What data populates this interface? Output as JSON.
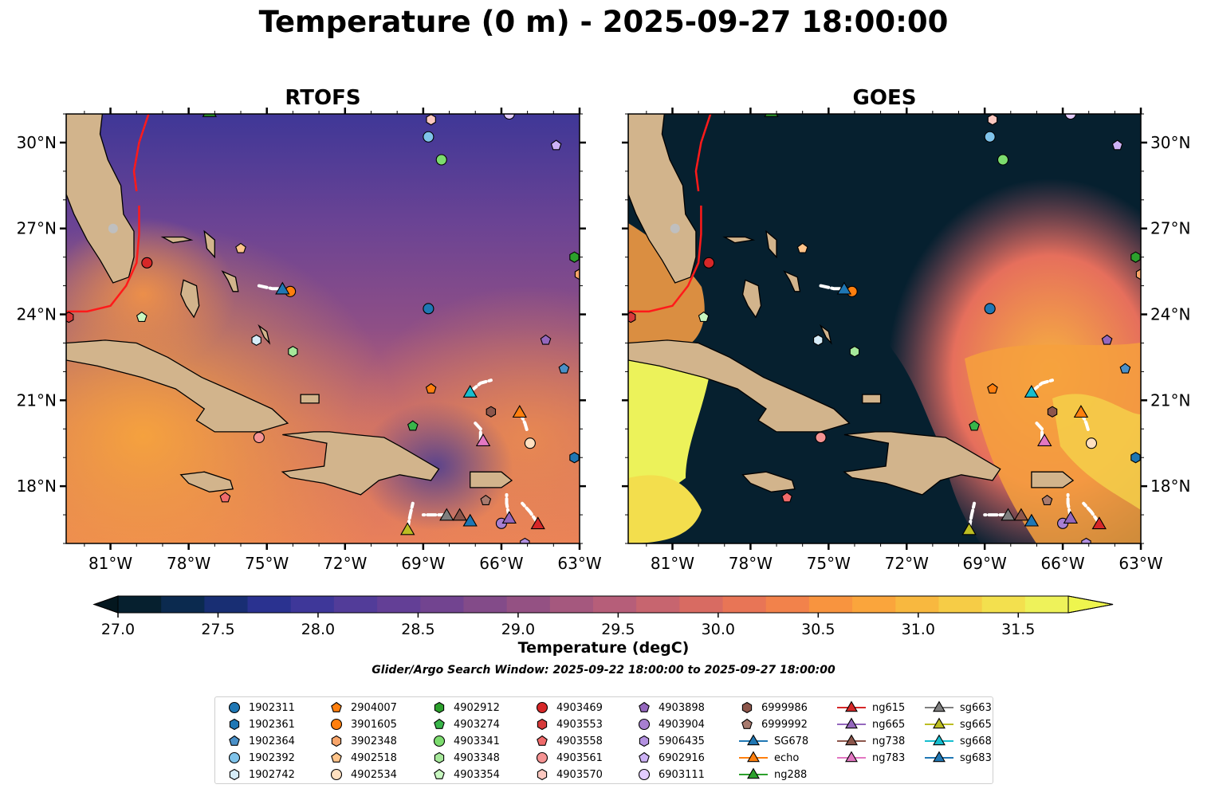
{
  "title": "Temperature (0 m) - 2025-09-27 18:00:00",
  "panels": [
    {
      "id": "rtofs",
      "title": "RTOFS"
    },
    {
      "id": "goes",
      "title": "GOES"
    }
  ],
  "colorbar": {
    "label": "Temperature (degC)",
    "ticks": [
      "27.0",
      "27.5",
      "28.0",
      "28.5",
      "29.0",
      "29.5",
      "30.0",
      "30.5",
      "31.0",
      "31.5"
    ],
    "colors": [
      "#06202f",
      "#0b2a4f",
      "#182e73",
      "#2a3290",
      "#3e3799",
      "#523c99",
      "#633f96",
      "#724490",
      "#834b89",
      "#945183",
      "#a5587e",
      "#b65e79",
      "#c7656f",
      "#d86b62",
      "#e87556",
      "#f2824b",
      "#f8943f",
      "#faa53c",
      "#f8b83f",
      "#f6cc46",
      "#f3e04e",
      "#eef25a"
    ],
    "min": 27.0,
    "max": 31.75,
    "extend": "both"
  },
  "search_window": "Glider/Argo Search Window: 2025-09-22 18:00:00 to 2025-09-27 18:00:00",
  "axes": {
    "x_ticks": [
      "81°W",
      "78°W",
      "75°W",
      "72°W",
      "69°W",
      "66°W",
      "63°W"
    ],
    "y_ticks": [
      "30°N",
      "27°N",
      "24°N",
      "21°N",
      "18°N"
    ]
  },
  "chart_data": {
    "type": "map",
    "lon_range": [
      -82.7,
      -63.0
    ],
    "lat_range": [
      16.0,
      31.0
    ],
    "lon_ticks": [
      -81,
      -78,
      -75,
      -72,
      -69,
      -66,
      -63
    ],
    "lat_ticks": [
      30,
      27,
      24,
      21,
      18
    ],
    "markers": [
      {
        "id": "1902311",
        "shape": "circle",
        "color": "#1f77b4",
        "lon": -68.8,
        "lat": 24.2
      },
      {
        "id": "1902361",
        "shape": "hexagon",
        "color": "#1f77b4",
        "lon": -63.2,
        "lat": 19.0
      },
      {
        "id": "1902364",
        "shape": "pentagon",
        "color": "#4a90c8",
        "lon": -63.6,
        "lat": 22.1
      },
      {
        "id": "1902392",
        "shape": "circle",
        "color": "#7fc3ea",
        "lon": -68.8,
        "lat": 30.2
      },
      {
        "id": "1902742",
        "shape": "hexagon",
        "color": "#d6ecf8",
        "lon": -75.4,
        "lat": 23.1
      },
      {
        "id": "2904007",
        "shape": "pentagon",
        "color": "#ff7f0e",
        "lon": -68.7,
        "lat": 21.4
      },
      {
        "id": "3901605",
        "shape": "circle",
        "color": "#ff7f0e",
        "lon": -74.1,
        "lat": 24.8
      },
      {
        "id": "3902348",
        "shape": "hexagon",
        "color": "#f9a56a",
        "lon": -63.0,
        "lat": 25.4
      },
      {
        "id": "4902518",
        "shape": "pentagon",
        "color": "#ffc48a",
        "lon": -76.0,
        "lat": 26.3
      },
      {
        "id": "4902534",
        "shape": "circle",
        "color": "#ffe0c0",
        "lon": -64.9,
        "lat": 19.5
      },
      {
        "id": "4902912",
        "shape": "hexagon",
        "color": "#2ca02c",
        "lon": -63.2,
        "lat": 26.0
      },
      {
        "id": "4903274",
        "shape": "pentagon",
        "color": "#39b54a",
        "lon": -69.4,
        "lat": 20.1
      },
      {
        "id": "4903341",
        "shape": "circle",
        "color": "#7cdc6e",
        "lon": -68.3,
        "lat": 29.4
      },
      {
        "id": "4903348",
        "shape": "hexagon",
        "color": "#a6e89a",
        "lon": -74.0,
        "lat": 22.7
      },
      {
        "id": "4903354",
        "shape": "pentagon",
        "color": "#c8f7c0",
        "lon": -79.8,
        "lat": 23.9
      },
      {
        "id": "4903469",
        "shape": "circle",
        "color": "#d62728",
        "lon": -79.6,
        "lat": 25.8
      },
      {
        "id": "4903553",
        "shape": "hexagon",
        "color": "#d63a3a",
        "lon": -82.6,
        "lat": 23.9
      },
      {
        "id": "4903558",
        "shape": "pentagon",
        "color": "#f06b6b",
        "lon": -76.6,
        "lat": 17.6
      },
      {
        "id": "4903561",
        "shape": "circle",
        "color": "#f59393",
        "lon": -75.3,
        "lat": 19.7
      },
      {
        "id": "4903570",
        "shape": "hexagon",
        "color": "#fbc8c0",
        "lon": -68.7,
        "lat": 30.8
      },
      {
        "id": "4903898",
        "shape": "pentagon",
        "color": "#9467bd",
        "lon": -64.3,
        "lat": 23.1
      },
      {
        "id": "4903904",
        "shape": "circle",
        "color": "#a77fd1",
        "lon": -66.0,
        "lat": 16.7
      },
      {
        "id": "5906435",
        "shape": "hexagon",
        "color": "#b391e0",
        "lon": -65.1,
        "lat": 16.0
      },
      {
        "id": "6902916",
        "shape": "pentagon",
        "color": "#cdb2f5",
        "lon": -63.9,
        "lat": 29.9
      },
      {
        "id": "6903111",
        "shape": "circle",
        "color": "#e2ccff",
        "lon": -65.7,
        "lat": 31.0
      },
      {
        "id": "6999986",
        "shape": "hexagon",
        "color": "#8c564b",
        "lon": -66.4,
        "lat": 20.6
      },
      {
        "id": "6999992",
        "shape": "pentagon",
        "color": "#a87a6e",
        "lon": -66.6,
        "lat": 17.5
      },
      {
        "id": "SG678",
        "shape": "triangle",
        "color": "#1f77b4",
        "lon": -74.4,
        "lat": 24.9
      },
      {
        "id": "echo",
        "shape": "triangle",
        "color": "#ff7f0e",
        "lon": -65.3,
        "lat": 20.6
      },
      {
        "id": "ng288",
        "shape": "triangle",
        "color": "#2ca02c",
        "lon": -77.2,
        "lat": 31.1
      },
      {
        "id": "ng615",
        "shape": "triangle",
        "color": "#d62728",
        "lon": -64.6,
        "lat": 16.7
      },
      {
        "id": "ng665",
        "shape": "triangle",
        "color": "#9467bd",
        "lon": -65.7,
        "lat": 16.9
      },
      {
        "id": "ng738",
        "shape": "triangle",
        "color": "#8c564b",
        "lon": -67.6,
        "lat": 17.0
      },
      {
        "id": "ng783",
        "shape": "triangle",
        "color": "#e377c2",
        "lon": -66.7,
        "lat": 19.6
      },
      {
        "id": "sg663",
        "shape": "triangle",
        "color": "#7f7f7f",
        "lon": -68.1,
        "lat": 17.0
      },
      {
        "id": "sg665",
        "shape": "triangle",
        "color": "#bcbd22",
        "lon": -69.6,
        "lat": 16.5
      },
      {
        "id": "sg668",
        "shape": "triangle",
        "color": "#17becf",
        "lon": -67.2,
        "lat": 21.3
      },
      {
        "id": "sg683",
        "shape": "triangle",
        "color": "#1f77b4",
        "lon": -67.2,
        "lat": 16.8
      }
    ],
    "tracks": [
      {
        "id": "SG678",
        "points": [
          [
            -75.3,
            25.0
          ],
          [
            -74.8,
            24.9
          ],
          [
            -74.4,
            24.9
          ]
        ]
      },
      {
        "id": "sg668",
        "points": [
          [
            -67.2,
            21.3
          ],
          [
            -66.8,
            21.6
          ],
          [
            -66.4,
            21.7
          ]
        ]
      },
      {
        "id": "echo",
        "points": [
          [
            -65.3,
            20.6
          ],
          [
            -65.1,
            20.2
          ],
          [
            -65.0,
            19.9
          ]
        ]
      },
      {
        "id": "ng783",
        "points": [
          [
            -66.8,
            19.6
          ],
          [
            -66.8,
            20.0
          ],
          [
            -67.0,
            20.2
          ]
        ]
      },
      {
        "id": "sg665",
        "points": [
          [
            -69.6,
            16.5
          ],
          [
            -69.5,
            17.0
          ],
          [
            -69.4,
            17.4
          ]
        ]
      },
      {
        "id": "ng615",
        "points": [
          [
            -64.6,
            16.7
          ],
          [
            -64.9,
            17.1
          ],
          [
            -65.2,
            17.4
          ]
        ]
      },
      {
        "id": "ng665",
        "points": [
          [
            -65.7,
            16.9
          ],
          [
            -65.8,
            17.4
          ],
          [
            -65.8,
            17.7
          ]
        ]
      },
      {
        "id": "sg663",
        "points": [
          [
            -68.1,
            17.0
          ],
          [
            -68.6,
            17.0
          ],
          [
            -69.0,
            17.0
          ]
        ]
      }
    ]
  },
  "legend": {
    "columns": [
      [
        "1902311",
        "1902361",
        "1902364",
        "1902392",
        "1902742"
      ],
      [
        "2904007",
        "3901605",
        "3902348",
        "4902518",
        "4902534"
      ],
      [
        "4902912",
        "4903274",
        "4903341",
        "4903348",
        "4903354"
      ],
      [
        "4903469",
        "4903553",
        "4903558",
        "4903561",
        "4903570"
      ],
      [
        "4903898",
        "4903904",
        "5906435",
        "6902916",
        "6903111"
      ],
      [
        "6999986",
        "6999992",
        "SG678",
        "echo",
        "ng288"
      ],
      [
        "ng615",
        "ng665",
        "ng738",
        "ng783"
      ],
      [
        "sg663",
        "sg665",
        "sg668",
        "sg683"
      ]
    ]
  }
}
